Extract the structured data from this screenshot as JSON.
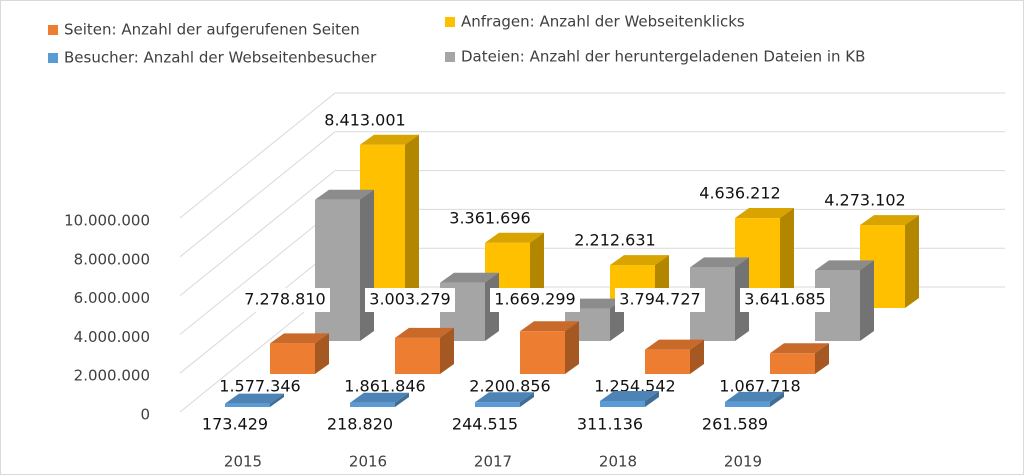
{
  "chart_data": {
    "type": "bar3d",
    "categories": [
      "2015",
      "2016",
      "2017",
      "2018",
      "2019"
    ],
    "series": [
      {
        "name": "Besucher: Anzahl der Webseitenbesucher",
        "color": "#5b9bd5",
        "values": [
          173429,
          218820,
          244515,
          311136,
          261589
        ],
        "value_labels": [
          "173.429",
          "218.820",
          "244.515",
          "311.136",
          "261.589"
        ]
      },
      {
        "name": "Seiten: Anzahl der aufgerufenen Seiten",
        "color": "#ed7d31",
        "values": [
          1577346,
          1861846,
          2200856,
          1254542,
          1067718
        ],
        "value_labels": [
          "1.577.346",
          "1.861.846",
          "2.200.856",
          "1.254.542",
          "1.067.718"
        ]
      },
      {
        "name": "Dateien: Anzahl der heruntergeladenen Dateien in KB",
        "color": "#a5a5a5",
        "values": [
          7278810,
          3003279,
          1669299,
          3794727,
          3641685
        ],
        "value_labels": [
          "7.278.810",
          "3.003.279",
          "1.669.299",
          "3.794.727",
          "3.641.685"
        ]
      },
      {
        "name": "Anfragen: Anzahl der Webseitenklicks",
        "color": "#ffc000",
        "values": [
          8413001,
          3361696,
          2212631,
          4636212,
          4273102
        ],
        "value_labels": [
          "8.413.001",
          "3.361.696",
          "2.212.631",
          "4.636.212",
          "4.273.102"
        ]
      }
    ],
    "ylim": [
      0,
      10000000
    ],
    "yticks": [
      0,
      {
        "value": 2000000,
        "label": "2.000.000"
      },
      {
        "value": 4000000,
        "label": "4.000.000"
      },
      {
        "value": 6000000,
        "label": "6.000.000"
      },
      {
        "value": 8000000,
        "label": "8.000.000"
      },
      {
        "value": 10000000,
        "label": "10.000.000"
      }
    ],
    "grid": true
  }
}
